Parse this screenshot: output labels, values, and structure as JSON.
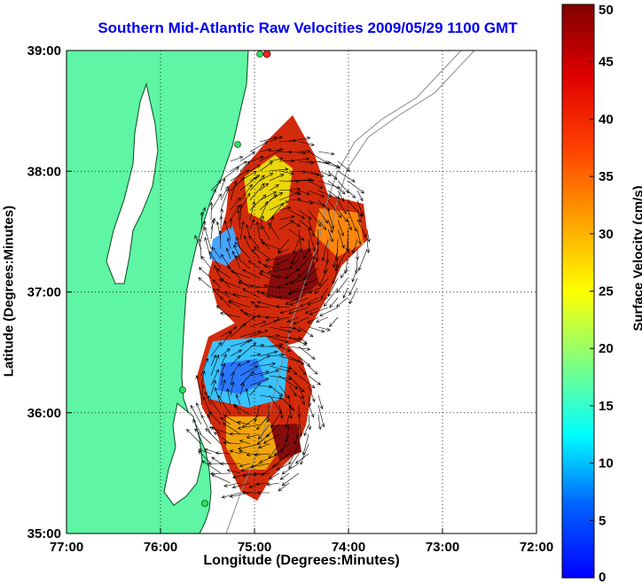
{
  "title": "Southern Mid-Atlantic Raw Velocities 2009/05/29 1100 GMT",
  "xlabel": "Longitude (Degrees:Minutes)",
  "ylabel": "Latitude (Degrees:Minutes)",
  "colorbar": {
    "label": "Surface Velocity (cm/s)",
    "min": 0,
    "max": 50,
    "ticks": [
      "0",
      "5",
      "10",
      "15",
      "20",
      "25",
      "30",
      "35",
      "40",
      "45",
      "50"
    ]
  },
  "x_ticks": [
    "77:00",
    "76:00",
    "75:00",
    "74:00",
    "73:00",
    "72:00"
  ],
  "y_ticks": [
    "39:00",
    "38:00",
    "37:00",
    "36:00",
    "35:00"
  ],
  "map": {
    "lon_range": [
      -77,
      -72
    ],
    "lat_range": [
      35,
      39
    ],
    "land_color": "#5ef5a4",
    "ocean_color": "#ffffff",
    "grid": "dotted",
    "colormap": "jet"
  }
}
